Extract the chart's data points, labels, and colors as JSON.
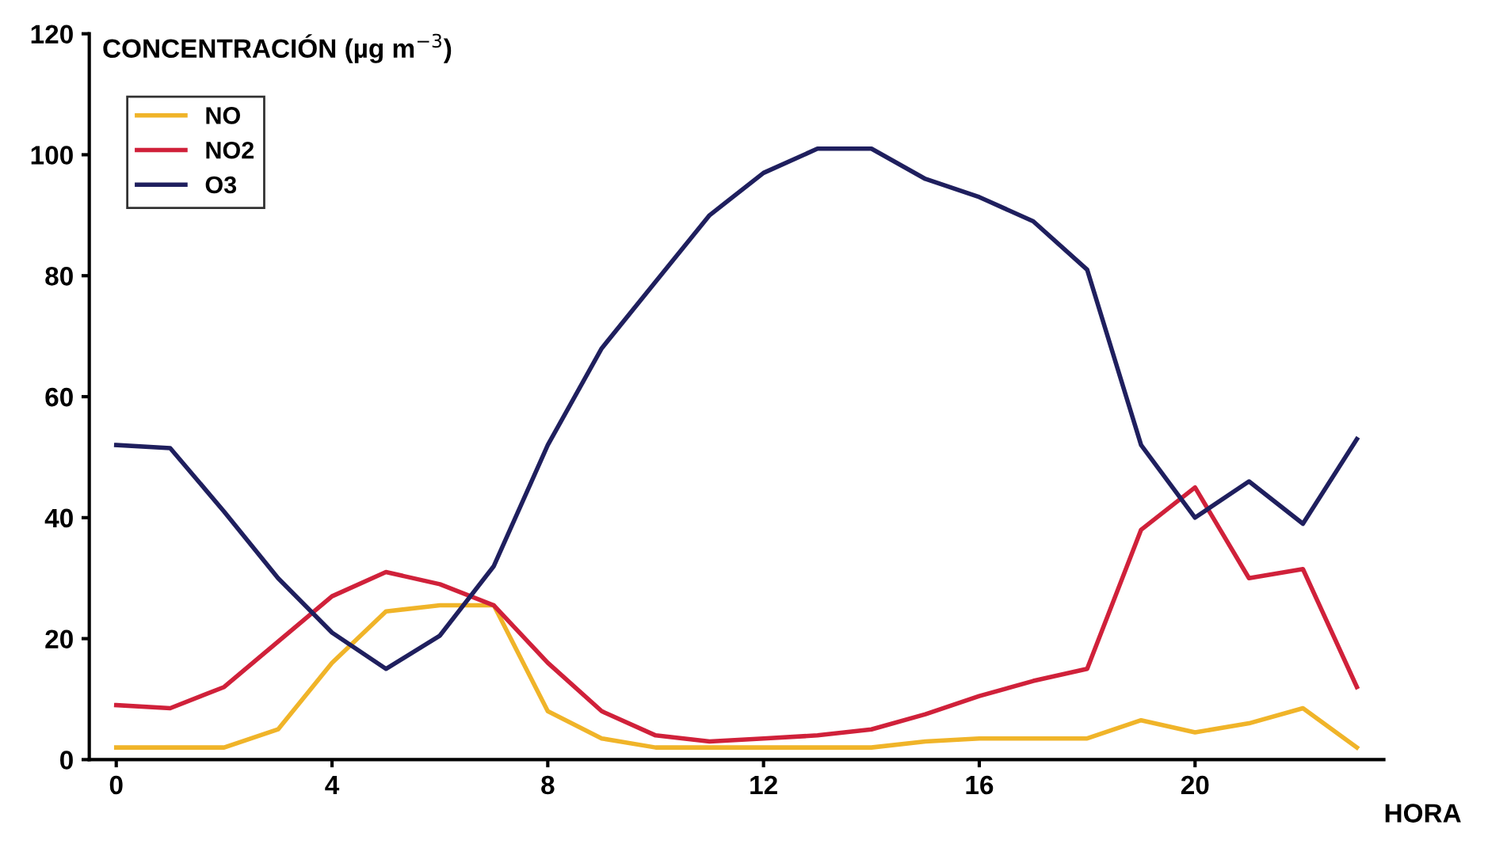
{
  "chart_data": {
    "type": "line",
    "ylabel": "CONCENTRACIÓN (µg m$^{−3}$)",
    "xlabel": "HORA",
    "x": [
      0,
      1,
      2,
      3,
      4,
      5,
      6,
      7,
      8,
      9,
      10,
      11,
      12,
      13,
      14,
      15,
      16,
      17,
      18,
      19,
      20,
      21,
      22,
      23
    ],
    "series": [
      {
        "name": "NO",
        "color": "#f0b429",
        "values": [
          2,
          2,
          2,
          5,
          16,
          24.5,
          25.5,
          25.5,
          8,
          3.5,
          2,
          2,
          2,
          2,
          2,
          3,
          3.5,
          3.5,
          3.5,
          6.5,
          4.5,
          6,
          8.5,
          2
        ]
      },
      {
        "name": "NO2",
        "color": "#d0213a",
        "values": [
          9,
          8.5,
          12,
          19.5,
          27,
          31,
          29,
          25.5,
          16,
          8,
          4,
          3,
          3.5,
          4,
          5,
          7.5,
          10.5,
          13,
          15,
          38,
          45,
          30,
          31.5,
          12
        ]
      },
      {
        "name": "O3",
        "color": "#1f1f5e",
        "values": [
          52,
          51.5,
          41,
          30,
          21,
          15,
          20.5,
          32,
          52,
          68,
          79,
          90,
          97,
          101,
          101,
          96,
          93,
          89,
          81,
          52,
          40,
          46,
          39,
          53
        ]
      }
    ],
    "xlim": [
      -0.5,
      23.5
    ],
    "xticks": [
      0,
      4,
      8,
      12,
      16,
      20
    ],
    "ylim": [
      0,
      120
    ],
    "yticks": [
      0,
      20,
      40,
      60,
      80,
      100,
      120
    ],
    "grid": false,
    "legend": "top left",
    "marker": "none",
    "line_style": "solid"
  }
}
